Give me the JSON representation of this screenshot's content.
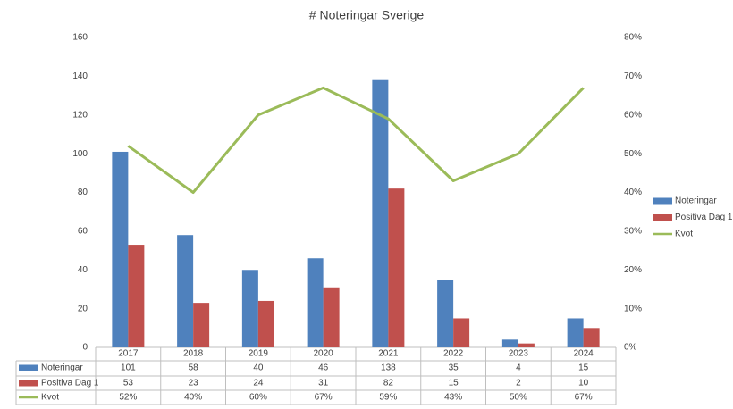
{
  "chart_data": {
    "type": "bar",
    "title": "# Noteringar Sverige",
    "categories": [
      "2017",
      "2018",
      "2019",
      "2020",
      "2021",
      "2022",
      "2023",
      "2024"
    ],
    "series": [
      {
        "name": "Noteringar",
        "color": "#4f81bd",
        "type": "bar",
        "values": [
          101,
          58,
          40,
          46,
          138,
          35,
          4,
          15
        ]
      },
      {
        "name": "Positiva Dag 1",
        "color": "#c0504d",
        "type": "bar",
        "values": [
          53,
          23,
          24,
          31,
          82,
          15,
          2,
          10
        ]
      },
      {
        "name": "Kvot",
        "color": "#9bbb59",
        "type": "line",
        "axis": "y2",
        "values": [
          52,
          40,
          60,
          67,
          59,
          43,
          50,
          67
        ],
        "value_labels": [
          "52%",
          "40%",
          "60%",
          "67%",
          "59%",
          "43%",
          "50%",
          "67%"
        ]
      }
    ],
    "ylim": [
      0,
      160
    ],
    "yticks": [
      0,
      20,
      40,
      60,
      80,
      100,
      120,
      140,
      160
    ],
    "y2lim": [
      0,
      80
    ],
    "y2ticks": [
      {
        "value": 0,
        "label": "0%"
      },
      {
        "value": 10,
        "label": "10%"
      },
      {
        "value": 20,
        "label": "20%"
      },
      {
        "value": 30,
        "label": "30%"
      },
      {
        "value": 40,
        "label": "40%"
      },
      {
        "value": 50,
        "label": "50%"
      },
      {
        "value": 60,
        "label": "60%"
      },
      {
        "value": 70,
        "label": "70%"
      },
      {
        "value": 80,
        "label": "80%"
      }
    ],
    "grid": false,
    "legend": "right"
  }
}
